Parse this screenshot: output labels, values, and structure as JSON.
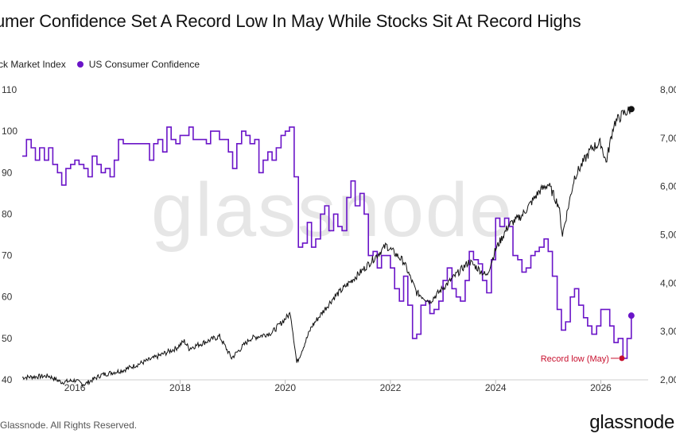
{
  "title": "umer Confidence Set A Record Low In May While Stocks Sit At Record Highs",
  "legend": [
    {
      "label": "ck Market Index",
      "color": "#111111"
    },
    {
      "label": "US Consumer Confidence",
      "color": "#6a14c8"
    }
  ],
  "watermark": "glassnode",
  "footer": "Glassnode. All Rights Reserved.",
  "brand": "glassnode",
  "chart_data": {
    "type": "line",
    "x_ticks": [
      "2016",
      "2018",
      "2020",
      "2022",
      "2024",
      "2026"
    ],
    "left_axis": {
      "ticks": [
        "40",
        "50",
        "60",
        "70",
        "80",
        "90",
        "100",
        "110"
      ],
      "ylim": [
        40,
        110
      ]
    },
    "right_axis": {
      "ticks": [
        "2,00",
        "3,00",
        "4,00",
        "5,00",
        "6,00",
        "7,00",
        "8,00"
      ],
      "ylim": [
        2000,
        8000
      ]
    },
    "grid": false,
    "annotation": {
      "text": "Record low (May)",
      "x": 2026.4,
      "y": 45.2,
      "color": "#c8102e"
    },
    "series": [
      {
        "name": "US Consumer Confidence",
        "color": "#6a14c8",
        "axis": "left",
        "step": true,
        "points": [
          [
            2015.0,
            94
          ],
          [
            2015.08,
            98
          ],
          [
            2015.17,
            96
          ],
          [
            2015.25,
            93
          ],
          [
            2015.33,
            96
          ],
          [
            2015.42,
            93
          ],
          [
            2015.5,
            96
          ],
          [
            2015.58,
            92
          ],
          [
            2015.67,
            90
          ],
          [
            2015.75,
            87
          ],
          [
            2015.83,
            91
          ],
          [
            2015.92,
            92
          ],
          [
            2016.0,
            93
          ],
          [
            2016.08,
            92
          ],
          [
            2016.17,
            91
          ],
          [
            2016.25,
            89
          ],
          [
            2016.33,
            94
          ],
          [
            2016.42,
            92
          ],
          [
            2016.5,
            90
          ],
          [
            2016.58,
            91
          ],
          [
            2016.67,
            89
          ],
          [
            2016.75,
            93
          ],
          [
            2016.83,
            98
          ],
          [
            2016.92,
            97
          ],
          [
            2017.0,
            97
          ],
          [
            2017.17,
            97
          ],
          [
            2017.33,
            97
          ],
          [
            2017.42,
            93
          ],
          [
            2017.5,
            97
          ],
          [
            2017.58,
            98
          ],
          [
            2017.67,
            95
          ],
          [
            2017.75,
            101
          ],
          [
            2017.83,
            98
          ],
          [
            2017.92,
            97
          ],
          [
            2018.0,
            99
          ],
          [
            2018.08,
            99
          ],
          [
            2018.17,
            101
          ],
          [
            2018.25,
            98
          ],
          [
            2018.33,
            98
          ],
          [
            2018.42,
            98
          ],
          [
            2018.5,
            97
          ],
          [
            2018.58,
            100
          ],
          [
            2018.67,
            100
          ],
          [
            2018.75,
            98
          ],
          [
            2018.83,
            98
          ],
          [
            2018.92,
            95
          ],
          [
            2019.0,
            91
          ],
          [
            2019.08,
            97
          ],
          [
            2019.17,
            100
          ],
          [
            2019.25,
            99
          ],
          [
            2019.33,
            97
          ],
          [
            2019.42,
            98
          ],
          [
            2019.5,
            90
          ],
          [
            2019.58,
            93
          ],
          [
            2019.67,
            95
          ],
          [
            2019.75,
            93
          ],
          [
            2019.83,
            96
          ],
          [
            2019.92,
            99
          ],
          [
            2020.0,
            100
          ],
          [
            2020.08,
            101
          ],
          [
            2020.17,
            89
          ],
          [
            2020.25,
            72
          ],
          [
            2020.33,
            73
          ],
          [
            2020.42,
            78
          ],
          [
            2020.5,
            72
          ],
          [
            2020.58,
            74
          ],
          [
            2020.67,
            80
          ],
          [
            2020.75,
            82
          ],
          [
            2020.83,
            76
          ],
          [
            2020.92,
            80
          ],
          [
            2021.0,
            77
          ],
          [
            2021.08,
            76
          ],
          [
            2021.17,
            84
          ],
          [
            2021.25,
            88
          ],
          [
            2021.33,
            82
          ],
          [
            2021.42,
            85
          ],
          [
            2021.5,
            80
          ],
          [
            2021.58,
            70
          ],
          [
            2021.67,
            71
          ],
          [
            2021.75,
            67
          ],
          [
            2021.83,
            70
          ],
          [
            2021.92,
            70
          ],
          [
            2022.0,
            67
          ],
          [
            2022.08,
            62
          ],
          [
            2022.17,
            59
          ],
          [
            2022.25,
            65
          ],
          [
            2022.33,
            58
          ],
          [
            2022.42,
            50
          ],
          [
            2022.5,
            51
          ],
          [
            2022.58,
            58
          ],
          [
            2022.67,
            59
          ],
          [
            2022.75,
            56
          ],
          [
            2022.83,
            57
          ],
          [
            2022.92,
            59
          ],
          [
            2023.0,
            64
          ],
          [
            2023.08,
            67
          ],
          [
            2023.17,
            62
          ],
          [
            2023.25,
            60
          ],
          [
            2023.33,
            59
          ],
          [
            2023.42,
            64
          ],
          [
            2023.5,
            71
          ],
          [
            2023.58,
            69
          ],
          [
            2023.67,
            68
          ],
          [
            2023.75,
            64
          ],
          [
            2023.83,
            61
          ],
          [
            2023.92,
            69
          ],
          [
            2024.0,
            79
          ],
          [
            2024.08,
            77
          ],
          [
            2024.17,
            79
          ],
          [
            2024.25,
            77
          ],
          [
            2024.33,
            70
          ],
          [
            2024.42,
            69
          ],
          [
            2024.5,
            66
          ],
          [
            2024.58,
            67
          ],
          [
            2024.67,
            70
          ],
          [
            2024.75,
            71
          ],
          [
            2024.83,
            72
          ],
          [
            2024.92,
            74
          ],
          [
            2025.0,
            71
          ],
          [
            2025.08,
            65
          ],
          [
            2025.17,
            57
          ],
          [
            2025.25,
            52
          ],
          [
            2025.33,
            54
          ],
          [
            2025.42,
            60
          ],
          [
            2025.5,
            62
          ],
          [
            2025.58,
            58
          ],
          [
            2025.67,
            55
          ],
          [
            2025.75,
            53
          ],
          [
            2025.83,
            51
          ],
          [
            2025.92,
            53
          ],
          [
            2026.0,
            57
          ],
          [
            2026.08,
            57
          ],
          [
            2026.17,
            53
          ],
          [
            2026.25,
            49
          ],
          [
            2026.33,
            50
          ],
          [
            2026.42,
            45.2
          ],
          [
            2026.5,
            50
          ],
          [
            2026.58,
            55.5
          ]
        ]
      },
      {
        "name": "Stock Market Index",
        "color": "#111111",
        "axis": "right",
        "step": false,
        "points": [
          [
            2015.0,
            2050
          ],
          [
            2015.5,
            2080
          ],
          [
            2015.75,
            1950
          ],
          [
            2016.0,
            1990
          ],
          [
            2016.17,
            1900
          ],
          [
            2016.5,
            2100
          ],
          [
            2016.92,
            2200
          ],
          [
            2017.5,
            2450
          ],
          [
            2017.92,
            2650
          ],
          [
            2018.08,
            2800
          ],
          [
            2018.17,
            2650
          ],
          [
            2018.75,
            2900
          ],
          [
            2018.98,
            2450
          ],
          [
            2019.33,
            2850
          ],
          [
            2019.75,
            2980
          ],
          [
            2020.1,
            3380
          ],
          [
            2020.22,
            2350
          ],
          [
            2020.5,
            3100
          ],
          [
            2020.92,
            3700
          ],
          [
            2021.5,
            4300
          ],
          [
            2021.92,
            4780
          ],
          [
            2022.25,
            4450
          ],
          [
            2022.5,
            3800
          ],
          [
            2022.75,
            3620
          ],
          [
            2023.0,
            3900
          ],
          [
            2023.5,
            4450
          ],
          [
            2023.83,
            4150
          ],
          [
            2024.0,
            4700
          ],
          [
            2024.25,
            5200
          ],
          [
            2024.5,
            5400
          ],
          [
            2024.83,
            5900
          ],
          [
            2025.0,
            6050
          ],
          [
            2025.2,
            5600
          ],
          [
            2025.27,
            5000
          ],
          [
            2025.5,
            6200
          ],
          [
            2025.83,
            6800
          ],
          [
            2026.0,
            6900
          ],
          [
            2026.1,
            6500
          ],
          [
            2026.25,
            7300
          ],
          [
            2026.42,
            7500
          ],
          [
            2026.58,
            7600
          ]
        ]
      }
    ]
  }
}
